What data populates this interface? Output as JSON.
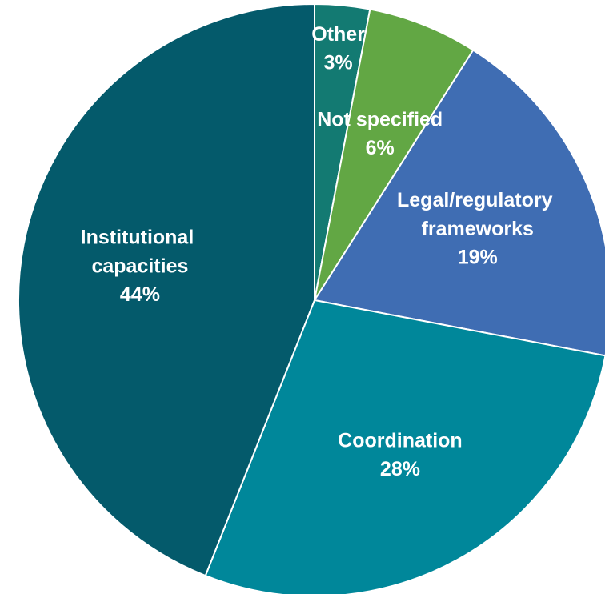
{
  "chart_data": {
    "type": "pie",
    "categories": [
      "Other",
      "Not specified",
      "Legal/regulatory frameworks",
      "Coordination",
      "Institutional capacities"
    ],
    "values": [
      3,
      6,
      19,
      28,
      44
    ],
    "value_labels": [
      "3%",
      "6%",
      "19%",
      "28%",
      "44%"
    ],
    "colors": [
      "#137a72",
      "#62a744",
      "#3f6db3",
      "#00879a",
      "#045a6b"
    ]
  }
}
